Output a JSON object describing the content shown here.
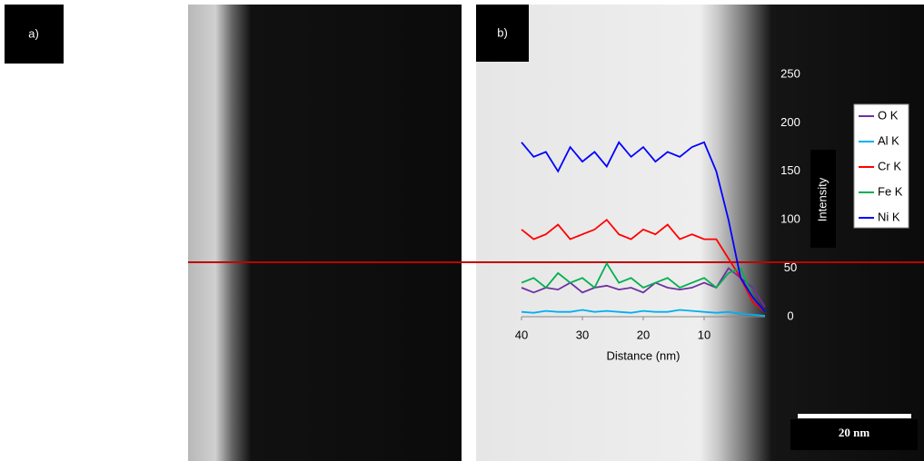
{
  "panel_labels": [
    "a)",
    "b)"
  ],
  "scale_bar": "20 nm",
  "chart_data": {
    "type": "line",
    "x_label": "Distance (nm)",
    "y_label": "Intensity",
    "x": [
      40,
      38,
      36,
      34,
      32,
      30,
      28,
      26,
      24,
      22,
      20,
      18,
      16,
      14,
      12,
      10,
      8,
      6,
      4,
      2,
      0
    ],
    "xlim": [
      40,
      0
    ],
    "xticks": [
      40,
      30,
      20,
      10
    ],
    "ylim": [
      0,
      250
    ],
    "yticks": [
      0,
      50,
      100,
      150,
      200,
      250
    ],
    "series": [
      {
        "name": "O K",
        "color": "#7030a0",
        "values": [
          30,
          25,
          30,
          28,
          35,
          25,
          30,
          32,
          28,
          30,
          25,
          35,
          30,
          28,
          30,
          35,
          30,
          50,
          40,
          30,
          10
        ]
      },
      {
        "name": "Al K",
        "color": "#00b0f0",
        "values": [
          5,
          4,
          6,
          5,
          5,
          7,
          5,
          6,
          5,
          4,
          6,
          5,
          5,
          7,
          6,
          5,
          4,
          5,
          3,
          2,
          1
        ]
      },
      {
        "name": "Cr K",
        "color": "#ff0000",
        "values": [
          90,
          80,
          85,
          95,
          80,
          85,
          90,
          100,
          85,
          80,
          90,
          85,
          95,
          80,
          85,
          80,
          80,
          60,
          40,
          15,
          5
        ]
      },
      {
        "name": "Fe K",
        "color": "#00b050",
        "values": [
          35,
          40,
          30,
          45,
          35,
          40,
          30,
          55,
          35,
          40,
          30,
          35,
          40,
          30,
          35,
          40,
          30,
          45,
          50,
          20,
          5
        ]
      },
      {
        "name": "Ni K",
        "color": "#0000ff",
        "values": [
          180,
          165,
          170,
          150,
          175,
          160,
          170,
          155,
          180,
          165,
          175,
          160,
          170,
          165,
          175,
          180,
          150,
          100,
          40,
          20,
          5
        ]
      }
    ]
  }
}
